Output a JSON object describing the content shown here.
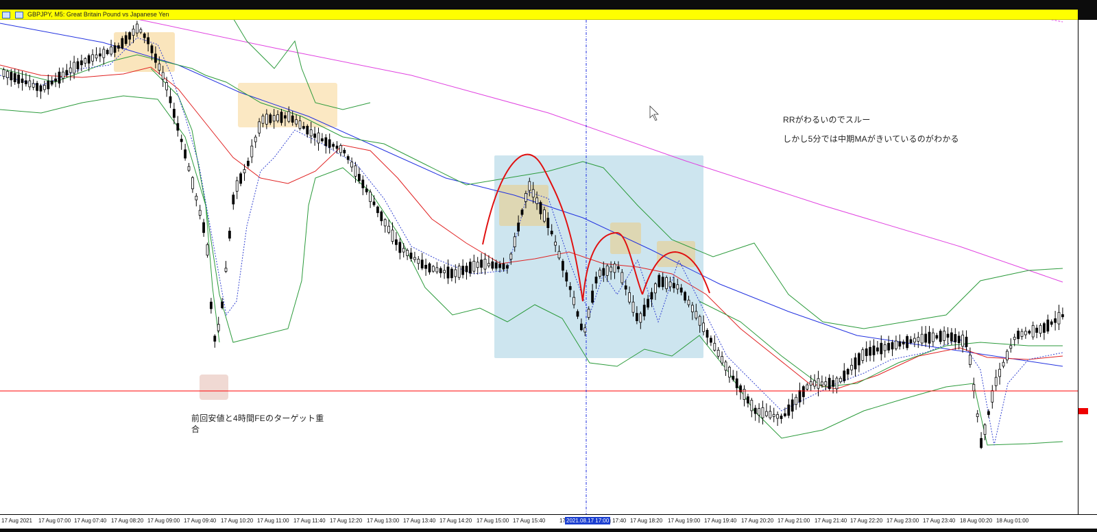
{
  "window": {
    "title": "GBPJPY, M5:  Great Britain Pound vs Japanese Yen"
  },
  "annotations": {
    "note_rr_line1": "RRがわるいのでスルー",
    "note_rr_line2": "しかし5分では中期MAがきいているのがわかる",
    "note_support_line1": "前回安値と4時間FEのターゲット重",
    "note_support_line2": "合"
  },
  "time_axis": {
    "labels": [
      "17 Aug 2021",
      "17 Aug 07:00",
      "17 Aug 07:40",
      "17 Aug 08:20",
      "17 Aug 09:00",
      "17 Aug 09:40",
      "17 Aug 10:20",
      "17 Aug 11:00",
      "17 Aug 11:40",
      "17 Aug 12:20",
      "17 Aug 13:00",
      "17 Aug 13:40",
      "17 Aug 14:20",
      "17 Aug 15:00",
      "17 Aug 15:40",
      "17 Aug 17:00",
      "17 Aug 17:40",
      "17 Aug 18:20",
      "17 Aug 19:00",
      "17 Aug 19:40",
      "17 Aug 20:20",
      "17 Aug 21:00",
      "17 Aug 21:40",
      "17 Aug 22:20",
      "17 Aug 23:00",
      "17 Aug 23:40",
      "18 Aug 00:20",
      "18 Aug 01:00"
    ],
    "cursor_label": "2021.08.17 17:00"
  },
  "colors": {
    "ma_long": "#e040e0",
    "ma_mid": "#2030e0",
    "ma_short": "#e02020",
    "bands": "#2a9a3a",
    "fast_dotted": "#3040d0",
    "support_line": "#ff0000",
    "orange_zone": "#f5c66a",
    "blue_zone": "#9ccbe0",
    "hand_drawn": "#e01010"
  }
}
